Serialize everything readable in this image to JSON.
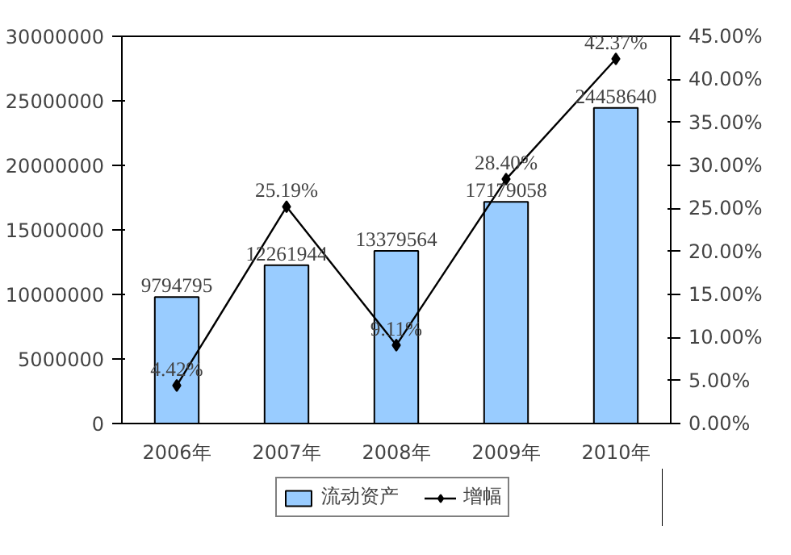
{
  "chart_data": {
    "type": "bar",
    "categories": [
      "2006年",
      "2007年",
      "2008年",
      "2009年",
      "2010年"
    ],
    "series": [
      {
        "name": "流动资产",
        "color": "#99ccff",
        "values": [
          9794795,
          12261944,
          13379564,
          17179058,
          24458640
        ],
        "value_labels": [
          "9794795",
          "12261944",
          "13379564",
          "17179058",
          "24458640"
        ]
      },
      {
        "name": "增幅",
        "type": "line",
        "axis": "y2",
        "color": "#000000",
        "marker": "diamond",
        "values": [
          4.42,
          25.19,
          9.11,
          28.4,
          42.37
        ],
        "value_labels": [
          "4.42%",
          "25.19%",
          "9.11%",
          "28.40%",
          "42.37%"
        ]
      }
    ],
    "ylim": [
      0,
      30000000
    ],
    "yticks": [
      0,
      5000000,
      10000000,
      15000000,
      20000000,
      25000000,
      30000000
    ],
    "y2lim": [
      0,
      45
    ],
    "y2ticks": [
      {
        "value": 0,
        "label": "0.00%"
      },
      {
        "value": 5,
        "label": "5.00%"
      },
      {
        "value": 10,
        "label": "10.00%"
      },
      {
        "value": 15,
        "label": "15.00%"
      },
      {
        "value": 20,
        "label": "20.00%"
      },
      {
        "value": 25,
        "label": "25.00%"
      },
      {
        "value": 30,
        "label": "30.00%"
      },
      {
        "value": 35,
        "label": "35.00%"
      },
      {
        "value": 40,
        "label": "40.00%"
      },
      {
        "value": 45,
        "label": "45.00%"
      }
    ],
    "grid": false,
    "legend": "bottom"
  }
}
